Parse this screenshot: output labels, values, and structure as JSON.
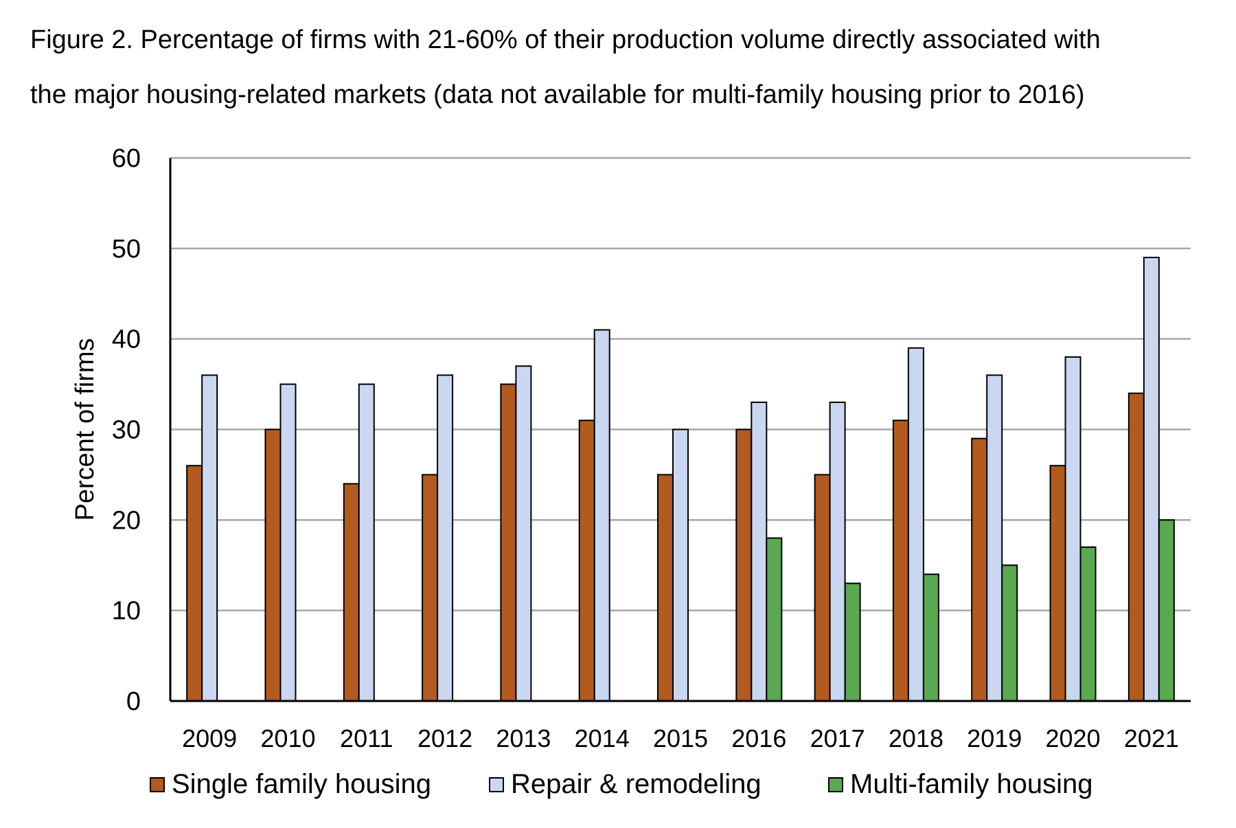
{
  "title_lines": [
    "Figure 2. Percentage of firms with 21-60% of their production volume directly associated with",
    "the major housing-related markets (data not available for multi-family housing prior to 2016)"
  ],
  "chart_data": {
    "type": "bar",
    "title": "Figure 2. Percentage of firms with 21-60% of their production volume directly associated with the major housing-related markets (data not available for multi-family housing prior to 2016)",
    "xlabel": "",
    "ylabel": "Percent of firms",
    "ylim": [
      0,
      60
    ],
    "yticks": [
      0,
      10,
      20,
      30,
      40,
      50,
      60
    ],
    "grid": true,
    "legend_position": "bottom",
    "categories": [
      "2009",
      "2010",
      "2011",
      "2012",
      "2013",
      "2014",
      "2015",
      "2016",
      "2017",
      "2018",
      "2019",
      "2020",
      "2021"
    ],
    "series": [
      {
        "name": "Single family housing",
        "color": "#b35a1f",
        "values": [
          26,
          30,
          24,
          25,
          35,
          31,
          25,
          30,
          25,
          31,
          29,
          26,
          34
        ]
      },
      {
        "name": "Repair & remodeling",
        "color": "#c9d8f0",
        "values": [
          36,
          35,
          35,
          36,
          37,
          41,
          30,
          33,
          33,
          39,
          36,
          38,
          49
        ]
      },
      {
        "name": "Multi-family housing",
        "color": "#5aa84f",
        "values": [
          null,
          null,
          null,
          null,
          null,
          null,
          null,
          18,
          13,
          14,
          15,
          17,
          20
        ]
      }
    ]
  }
}
